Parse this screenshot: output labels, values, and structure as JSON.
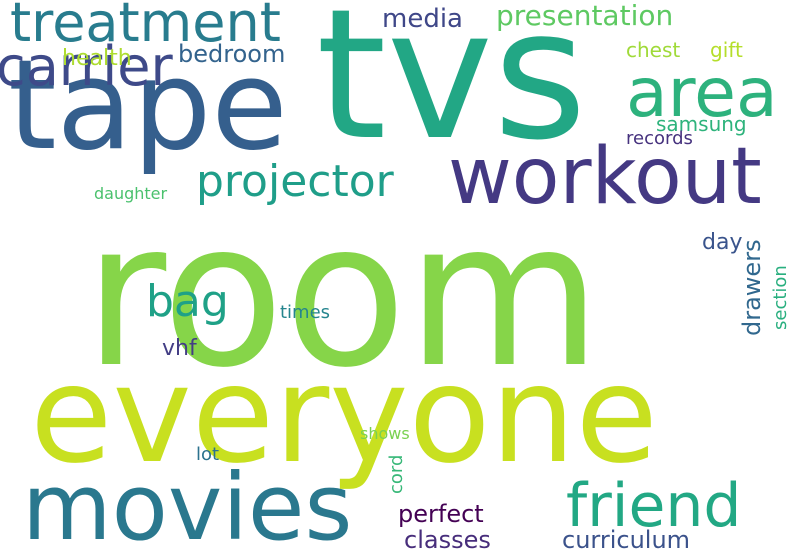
{
  "words": {
    "room": {
      "text": "room",
      "color": "#86d549"
    },
    "tvs": {
      "text": "tvs",
      "color": "#22a785"
    },
    "tape": {
      "text": "tape",
      "color": "#355f8d"
    },
    "everyone": {
      "text": "everyone",
      "color": "#c8e020"
    },
    "movies": {
      "text": "movies",
      "color": "#2a788e"
    },
    "workout": {
      "text": "workout",
      "color": "#443983"
    },
    "treatment": {
      "text": "treatment",
      "color": "#287c8e"
    },
    "area": {
      "text": "area",
      "color": "#2db27d"
    },
    "friend": {
      "text": "friend",
      "color": "#22a884"
    },
    "projector": {
      "text": "projector",
      "color": "#1f9e89"
    },
    "carrier": {
      "text": "carrier",
      "color": "#3e4a89"
    },
    "bag": {
      "text": "bag",
      "color": "#1fa187"
    },
    "presentation": {
      "text": "presentation",
      "color": "#5ec962"
    },
    "media": {
      "text": "media",
      "color": "#3f4788"
    },
    "bedroom": {
      "text": "bedroom",
      "color": "#33638d"
    },
    "health": {
      "text": "health",
      "color": "#addc30"
    },
    "chest": {
      "text": "chest",
      "color": "#a0da39"
    },
    "gift": {
      "text": "gift",
      "color": "#b5de2b"
    },
    "samsung": {
      "text": "samsung",
      "color": "#2eb37c"
    },
    "records": {
      "text": "records",
      "color": "#46327e"
    },
    "daughter": {
      "text": "daughter",
      "color": "#4ac16d"
    },
    "day": {
      "text": "day",
      "color": "#3a548c"
    },
    "drawers": {
      "text": "drawers",
      "color": "#31688e"
    },
    "section": {
      "text": "section",
      "color": "#29af7f"
    },
    "times": {
      "text": "times",
      "color": "#25858e"
    },
    "vhf": {
      "text": "vhf",
      "color": "#433e85"
    },
    "shows": {
      "text": "shows",
      "color": "#7ad151"
    },
    "cord": {
      "text": "cord",
      "color": "#37b878"
    },
    "lot": {
      "text": "lot",
      "color": "#2c728e"
    },
    "perfect": {
      "text": "perfect",
      "color": "#440154"
    },
    "classes": {
      "text": "classes",
      "color": "#472d7b"
    },
    "curriculum": {
      "text": "curriculum",
      "color": "#3b528b"
    }
  }
}
